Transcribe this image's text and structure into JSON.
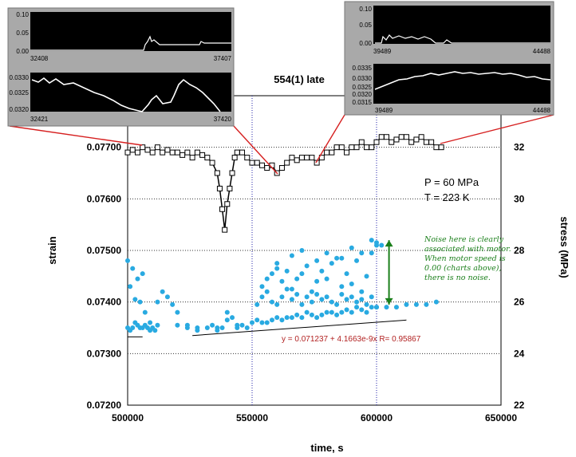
{
  "chart_data": {
    "type": "scatter",
    "title": "554(1) late",
    "xlabel": "time, s",
    "ylabel": "strain",
    "y2label": "stress (MPa)",
    "xlim": [
      500000,
      650000
    ],
    "ylim": [
      0.072,
      0.078
    ],
    "y2lim": [
      22,
      34
    ],
    "x_ticks": [
      "500000",
      "550000",
      "600000",
      "650000"
    ],
    "x_tick_values": [
      500000,
      550000,
      600000,
      650000
    ],
    "y_ticks": [
      "0.07200",
      "0.07300",
      "0.07400",
      "0.07500",
      "0.07600",
      "0.07700"
    ],
    "y_tick_values": [
      0.072,
      0.073,
      0.074,
      0.075,
      0.076,
      0.077
    ],
    "y2_ticks": [
      "22",
      "24",
      "26",
      "28",
      "30",
      "32"
    ],
    "y2_tick_values": [
      22,
      24,
      26,
      28,
      30,
      32
    ],
    "grid": true,
    "conditions": [
      "P = 60 MPa",
      "T = 223 K"
    ],
    "annotation_lines": [
      "Noise here is clearly",
      "associated with motor.",
      "When motor speed is",
      "0.00 (charts above),",
      "there is no noise."
    ],
    "fit_label": "y = 0.071237 + 4.1663e-9x   R= 0.95867",
    "fit": {
      "intercept": 0.071237,
      "slope": 4.1663e-09,
      "x_range": [
        526000,
        612000
      ]
    },
    "stress_flat_lines": [
      {
        "x": [
          500000,
          506000
        ],
        "y2": 24.65
      }
    ],
    "arrow": {
      "x": 605000,
      "y2_range": [
        25.9,
        28.4
      ]
    },
    "series": [
      {
        "axis": "strain",
        "color": "#000000",
        "marker": "open-square",
        "x": [
          500000,
          502000,
          504000,
          506000,
          508000,
          510000,
          512000,
          514000,
          516000,
          518000,
          520000,
          522000,
          524000,
          526000,
          528000,
          530000,
          532000,
          534000,
          536000,
          537000,
          538000,
          539000,
          540000,
          541000,
          542000,
          543000,
          544000,
          546000,
          548000,
          550000,
          552000,
          554000,
          556000,
          558000,
          560000,
          562000,
          564000,
          566000,
          568000,
          570000,
          572000,
          574000,
          576000,
          578000,
          580000,
          582000,
          584000,
          586000,
          588000,
          590000,
          592000,
          594000,
          596000,
          598000,
          600000,
          602000,
          604000,
          606000,
          608000,
          610000,
          612000,
          614000,
          616000,
          618000,
          620000,
          622000,
          624000,
          626000
        ],
        "y": [
          0.0769,
          0.07695,
          0.0769,
          0.077,
          0.07695,
          0.0769,
          0.077,
          0.0769,
          0.07695,
          0.0769,
          0.0769,
          0.07685,
          0.0769,
          0.0768,
          0.0769,
          0.07685,
          0.0768,
          0.0767,
          0.0765,
          0.0762,
          0.0758,
          0.0754,
          0.0759,
          0.0762,
          0.0765,
          0.0768,
          0.0769,
          0.0769,
          0.0768,
          0.0767,
          0.0767,
          0.07665,
          0.0766,
          0.07665,
          0.0765,
          0.0766,
          0.0767,
          0.0768,
          0.07675,
          0.0768,
          0.0768,
          0.0768,
          0.0767,
          0.0768,
          0.0769,
          0.0769,
          0.077,
          0.077,
          0.0769,
          0.077,
          0.077,
          0.0771,
          0.077,
          0.077,
          0.0771,
          0.0772,
          0.0772,
          0.0771,
          0.07715,
          0.0772,
          0.0772,
          0.0771,
          0.07715,
          0.0772,
          0.0771,
          0.0771,
          0.077,
          0.077
        ]
      },
      {
        "axis": "stress",
        "color": "#29aae1",
        "marker": "filled-circle",
        "x": [
          500000,
          501000,
          502000,
          503000,
          504000,
          505000,
          506000,
          507000,
          508000,
          509000,
          510000,
          512000,
          514000,
          516000,
          518000,
          520000,
          524000,
          528000,
          532000,
          534000,
          536000,
          538000,
          540000,
          542000,
          544000,
          546000,
          548000,
          550000,
          552000,
          554000,
          556000,
          558000,
          560000,
          562000,
          564000,
          566000,
          568000,
          570000,
          572000,
          574000,
          576000,
          578000,
          580000,
          582000,
          584000,
          586000,
          588000,
          590000,
          592000,
          594000,
          596000,
          598000,
          600000,
          604000,
          608000,
          612000,
          616000,
          620000,
          624000,
          500000,
          502000,
          504000,
          506000,
          505000,
          507000,
          509000,
          511000,
          512000,
          520000,
          524000,
          528000,
          536000,
          540000,
          544000,
          552000,
          554000,
          556000,
          558000,
          560000,
          562000,
          564000,
          566000,
          568000,
          570000,
          572000,
          574000,
          576000,
          578000,
          580000,
          582000,
          584000,
          586000,
          588000,
          590000,
          592000,
          594000,
          596000,
          598000,
          600000,
          501000,
          503000,
          554000,
          556000,
          558000,
          560000,
          562000,
          564000,
          566000,
          568000,
          570000,
          572000,
          574000,
          576000,
          578000,
          580000,
          582000,
          584000,
          586000,
          588000,
          590000,
          592000,
          594000,
          596000,
          598000,
          600000,
          560000,
          566000,
          570000,
          576000,
          580000,
          586000,
          590000,
          594000,
          598000,
          600000,
          602000
        ],
        "y2": [
          25.0,
          24.9,
          25.0,
          25.2,
          25.1,
          25.0,
          25.0,
          25.1,
          25.0,
          24.9,
          25.0,
          26.0,
          26.4,
          26.2,
          25.9,
          25.6,
          25.0,
          24.9,
          25.0,
          25.1,
          25.0,
          25.0,
          25.6,
          25.4,
          25.0,
          25.1,
          25.0,
          25.2,
          25.3,
          25.2,
          25.2,
          25.3,
          25.4,
          25.3,
          25.4,
          25.4,
          25.5,
          25.4,
          25.6,
          25.5,
          25.4,
          25.5,
          25.6,
          25.6,
          25.5,
          25.6,
          25.7,
          25.6,
          25.8,
          25.7,
          25.6,
          25.8,
          25.8,
          25.8,
          25.8,
          25.9,
          25.9,
          25.9,
          26.0,
          27.6,
          27.3,
          26.9,
          27.1,
          26.0,
          25.6,
          25.2,
          24.9,
          25.1,
          25.1,
          25.1,
          25.0,
          24.9,
          25.3,
          25.1,
          25.9,
          26.6,
          26.9,
          27.1,
          27.3,
          26.8,
          27.2,
          26.5,
          26.9,
          27.1,
          27.4,
          26.4,
          26.8,
          27.2,
          26.9,
          27.5,
          27.7,
          26.6,
          27.1,
          26.7,
          27.6,
          26.4,
          27.0,
          27.9,
          28.2,
          26.6,
          26.1,
          26.2,
          26.4,
          26.0,
          25.9,
          26.2,
          26.5,
          26.1,
          26.3,
          25.9,
          26.2,
          26.0,
          26.3,
          26.1,
          26.2,
          26.0,
          25.9,
          26.3,
          26.1,
          26.2,
          26.0,
          26.1,
          25.9,
          26.2,
          25.8,
          27.5,
          27.8,
          28.0,
          27.6,
          27.9,
          27.7,
          28.1,
          27.9,
          28.4,
          28.3,
          28.2
        ]
      }
    ],
    "insets": [
      {
        "top_ticks_y": [
          "0.10",
          "0.05",
          "0.00"
        ],
        "top_x_ticks": [
          "32408",
          "37407"
        ],
        "bottom_ticks_y": [
          "0.0330",
          "0.0325",
          "0.0320"
        ],
        "bottom_x_ticks": [
          "32421",
          "37420"
        ]
      },
      {
        "top_ticks_y": [
          "0.10",
          "0.05",
          "0.00"
        ],
        "top_x_ticks": [
          "39489",
          "44488"
        ],
        "bottom_ticks_y": [
          "0.0335",
          "0.0330",
          "0.0325",
          "0.0320",
          "0.0315"
        ],
        "bottom_x_ticks": [
          "39489",
          "44488"
        ]
      }
    ]
  },
  "colors": {
    "strain": "#000000",
    "stress": "#29aae1",
    "grid": "#2222aa",
    "note": "#1a7f1a",
    "fit": "#b22222",
    "callout": "#d62020",
    "panel": "#a9a9a9"
  }
}
